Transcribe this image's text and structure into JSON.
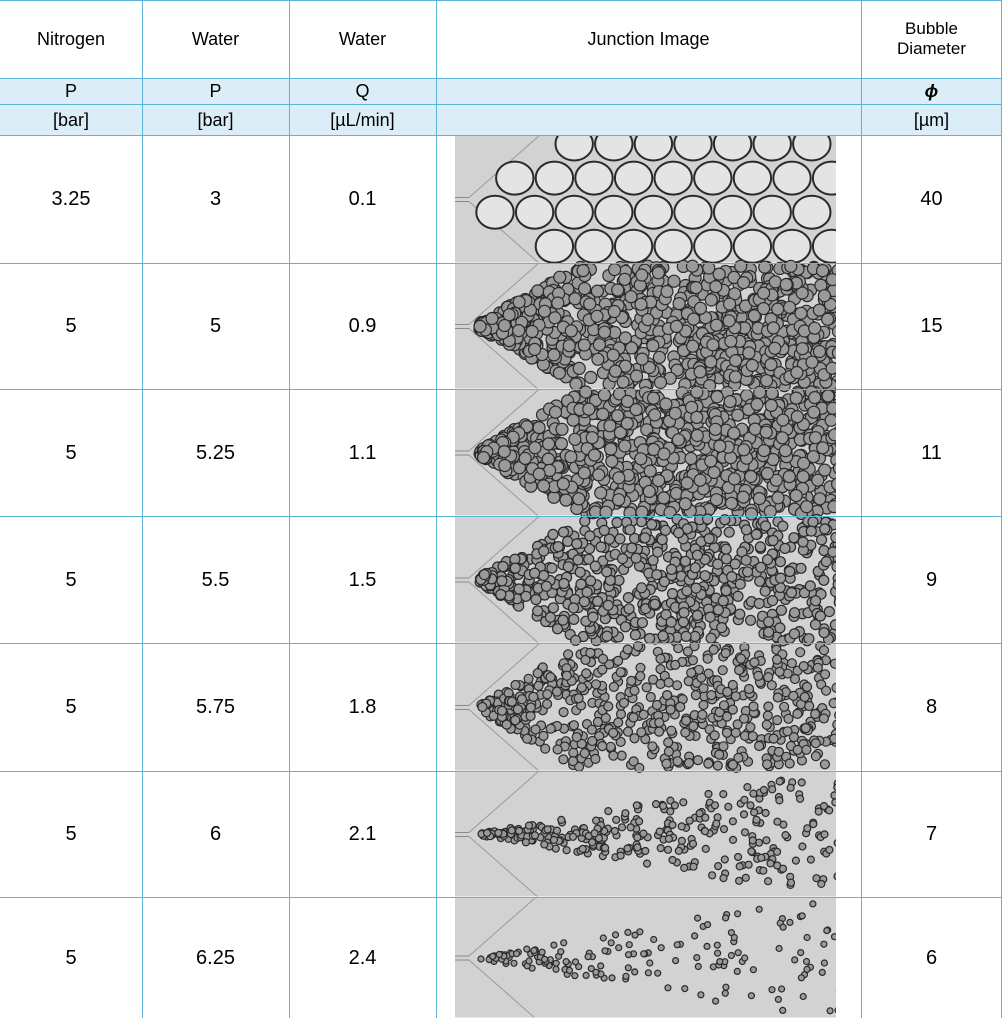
{
  "table": {
    "header": {
      "nitrogen": "Nitrogen",
      "water_p": "Water",
      "water_q": "Water",
      "junction": "Junction Image",
      "bubble_line1": "Bubble",
      "bubble_line2": "Diameter"
    },
    "symbols": {
      "nitrogen": "P",
      "water_p": "P",
      "water_q": "Q",
      "junction": "",
      "bubble": "ϕ"
    },
    "units": {
      "nitrogen": "[bar]",
      "water_p": "[bar]",
      "water_q": "[µL/min]",
      "junction": "",
      "bubble": "[µm]"
    },
    "rows": [
      {
        "nitrogen_p": "3.25",
        "water_p": "3",
        "water_q": "0.1",
        "diameter": "40"
      },
      {
        "nitrogen_p": "5",
        "water_p": "5",
        "water_q": "0.9",
        "diameter": "15"
      },
      {
        "nitrogen_p": "5",
        "water_p": "5.25",
        "water_q": "1.1",
        "diameter": "11"
      },
      {
        "nitrogen_p": "5",
        "water_p": "5.5",
        "water_q": "1.5",
        "diameter": "9"
      },
      {
        "nitrogen_p": "5",
        "water_p": "5.75",
        "water_q": "1.8",
        "diameter": "8"
      },
      {
        "nitrogen_p": "5",
        "water_p": "6",
        "water_q": "2.1",
        "diameter": "7"
      },
      {
        "nitrogen_p": "5",
        "water_p": "6.25",
        "water_q": "2.4",
        "diameter": "6"
      }
    ]
  },
  "colors": {
    "grid": "#5bb5d6",
    "subheader_bg": "#dbeef7",
    "image_bg": "#d2d2d2",
    "bubble_stroke": "#2a2a2a"
  },
  "icons": {
    "junction_image": "microfluidic-junction-bubble-photo"
  }
}
